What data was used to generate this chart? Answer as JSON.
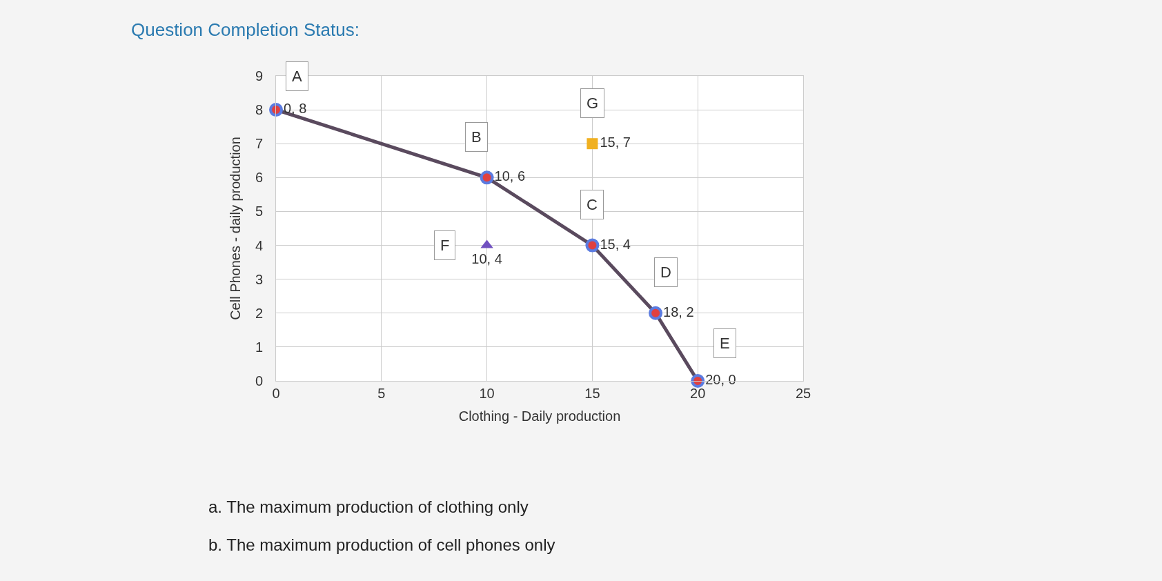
{
  "chart_data": {
    "type": "line",
    "title": "Question Completion Status:",
    "xlabel": "Clothing - Daily production",
    "ylabel": "Cell Phones - daily production",
    "series": [
      {
        "x": [
          0,
          10,
          15,
          18,
          20
        ],
        "values": [
          8,
          6,
          4,
          2,
          0
        ],
        "color": "#5a4a5e",
        "marker": "circle",
        "value_labels": [
          "0, 8",
          "10, 6",
          "15, 4",
          "18, 2",
          "20, 0"
        ]
      },
      {
        "type": "scatter",
        "x": [
          10
        ],
        "values": [
          4
        ],
        "color": "#7050c0",
        "marker": "triangle",
        "value_labels": [
          "10, 4"
        ]
      },
      {
        "type": "scatter",
        "x": [
          15
        ],
        "values": [
          7
        ],
        "color": "#f0b020",
        "marker": "square",
        "value_labels": [
          "15, 7"
        ]
      }
    ],
    "annotations": [
      {
        "text": "A",
        "x": 1,
        "y": 9
      },
      {
        "text": "B",
        "x": 9.5,
        "y": 7.2
      },
      {
        "text": "G",
        "x": 15,
        "y": 8.2
      },
      {
        "text": "C",
        "x": 15,
        "y": 5.2
      },
      {
        "text": "F",
        "x": 8,
        "y": 4
      },
      {
        "text": "D",
        "x": 18.5,
        "y": 3.2
      },
      {
        "text": "E",
        "x": 21.3,
        "y": 1.1
      },
      "a. The maximum production of clothing only",
      "b. The maximum production of cell phones only"
    ],
    "xlim": [
      0,
      25
    ],
    "xticks": [
      0,
      5,
      10,
      15,
      20,
      25
    ],
    "ylim": [
      0,
      9
    ],
    "yticks": [
      0,
      1,
      2,
      3,
      4,
      5,
      6,
      7,
      8,
      9
    ],
    "grid": true
  }
}
